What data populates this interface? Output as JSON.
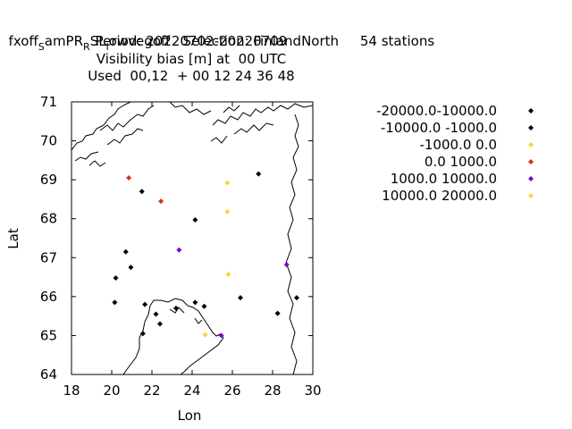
{
  "title": {
    "line1_main": "fxoff",
    "line1_sub1": "S",
    "line1_mid": "amPR",
    "line1_sub2": "R",
    "line1_mid2": "SL",
    "line1_sub3": "l",
    "line1_rest": "owvegoff   Selection: FinlandNorth     54 stations",
    "line2": "Period: 20220702-20220709",
    "line3": "Visibility bias [m] at  00 UTC",
    "line4": "Used  00,12  + 00 12 24 36 48"
  },
  "chart_data": {
    "type": "scatter",
    "xlabel": "Lon",
    "ylabel": "Lat",
    "xlim": [
      18,
      30
    ],
    "ylim": [
      64,
      71
    ],
    "xticks": [
      "18",
      "20",
      "22",
      "24",
      "26",
      "28",
      "30"
    ],
    "yticks": [
      "64",
      "65",
      "66",
      "67",
      "68",
      "69",
      "70",
      "71"
    ],
    "grid": false,
    "legend_position": "right",
    "series": [
      {
        "name": "-20000.0-10000.0",
        "color": "#000000",
        "points": []
      },
      {
        "name": "-10000.0 -1000.0",
        "color": "#000000",
        "points": [
          [
            27.3,
            69.15
          ],
          [
            21.5,
            68.7
          ],
          [
            24.15,
            67.97
          ],
          [
            20.7,
            67.15
          ],
          [
            20.95,
            66.75
          ],
          [
            20.2,
            66.48
          ],
          [
            20.15,
            65.85
          ],
          [
            21.65,
            65.8
          ],
          [
            22.2,
            65.55
          ],
          [
            22.4,
            65.3
          ],
          [
            23.2,
            65.7
          ],
          [
            24.15,
            65.85
          ],
          [
            24.6,
            65.75
          ],
          [
            26.4,
            65.97
          ],
          [
            28.25,
            65.57
          ],
          [
            29.2,
            65.97
          ],
          [
            21.55,
            65.05
          ]
        ]
      },
      {
        "name": "-1000.0 0.0",
        "color": "#f0d840",
        "points": [
          [
            25.75,
            68.92
          ],
          [
            25.75,
            68.18
          ],
          [
            25.8,
            66.57
          ],
          [
            24.65,
            65.02
          ]
        ]
      },
      {
        "name": "0.0 1000.0",
        "color": "#d03020",
        "points": [
          [
            20.85,
            69.05
          ],
          [
            22.45,
            68.45
          ]
        ]
      },
      {
        "name": "1000.0 10000.0",
        "color": "#8000d0",
        "points": [
          [
            23.35,
            67.2
          ],
          [
            28.7,
            66.82
          ],
          [
            25.45,
            65.0
          ]
        ]
      },
      {
        "name": "10000.0 20000.0",
        "color": "#f0d840",
        "points": []
      }
    ]
  }
}
